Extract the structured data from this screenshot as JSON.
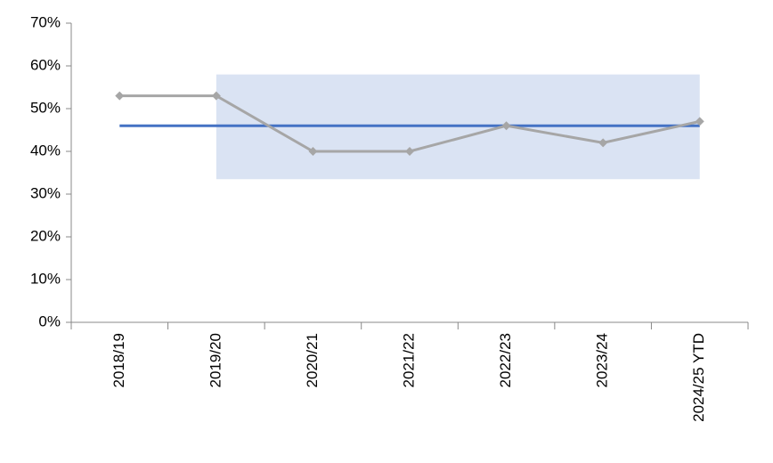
{
  "chart_data": {
    "type": "line",
    "categories": [
      "2018/19",
      "2019/20",
      "2020/21",
      "2021/22",
      "2022/23",
      "2023/24",
      "2024/25 YTD"
    ],
    "series": [
      {
        "color": "#a6a6a6",
        "marker": "diamond",
        "values": [
          53,
          53,
          40,
          40,
          46,
          42,
          47
        ]
      }
    ],
    "mean": {
      "color": "#4472c4",
      "values": [
        46,
        46,
        46,
        46,
        46,
        46,
        46
      ]
    },
    "band": {
      "color": "#dae3f3",
      "upper": [
        null,
        58,
        58,
        58,
        58,
        58,
        58
      ],
      "lower": [
        null,
        33.5,
        33.5,
        33.5,
        33.5,
        33.5,
        33.5
      ]
    },
    "ylim": [
      0,
      70
    ],
    "yticks": [
      {
        "value": 0,
        "label": "0%"
      },
      {
        "value": 10,
        "label": "10%"
      },
      {
        "value": 20,
        "label": "20%"
      },
      {
        "value": 30,
        "label": "30%"
      },
      {
        "value": 40,
        "label": "40%"
      },
      {
        "value": 50,
        "label": "50%"
      },
      {
        "value": 60,
        "label": "60%"
      },
      {
        "value": 70,
        "label": "70%"
      }
    ],
    "grid": false
  }
}
